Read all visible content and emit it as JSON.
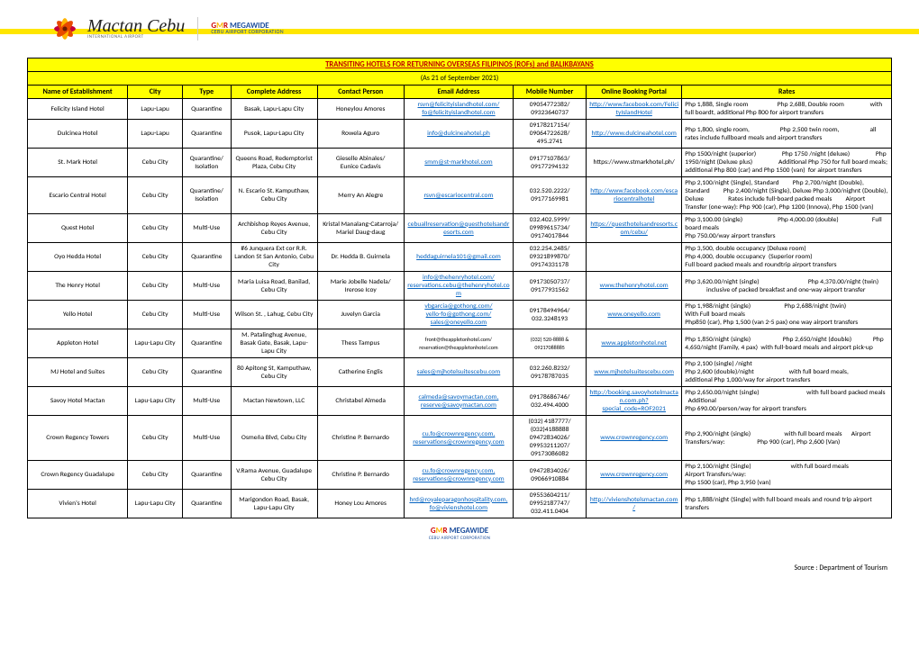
{
  "header": {
    "brand1_script": "Mactan Cebu",
    "brand1_sub": "INTERNATIONAL  AIRPORT",
    "brand2_line1_g": "G",
    "brand2_line1_amp": "M",
    "brand2_line1_r": "R",
    "brand2_line1_mega": " MEGAWIDE",
    "brand2_line2": "CEBU AIRPORT CORPORATION"
  },
  "table": {
    "title": "TRANSITING HOTELS FOR RETURNING OVERSEAS FILIPINOS (ROFs) and BALIKBAYANS",
    "subtitle": "(As 21 of September 2021)",
    "columns": [
      "Name of Establishment",
      "City",
      "Type",
      "Complete Address",
      "Contact Person",
      "Email Address",
      "Mobile Number",
      "Online Booking Portal",
      "Rates"
    ],
    "rows": [
      {
        "name": "Felicity Island Hotel",
        "city": "Lapu-Lapu",
        "type": "Quarantine",
        "addr": "Basak, Lapu-Lapu City",
        "contact": "Honeylou Amores",
        "email_html": "<a class='link' href='#'>rsvn@felicityislandhotel.com/</a><br><a class='link' href='#'>fo@felicityislandhotel.com</a>",
        "mobile": "09054772382/<br>09323640737",
        "portal_html": "<a class='link' href='#'>http://www.facebook.com/FelicityIslandHotel</a>",
        "rates": "Php 1,888, Single room &nbsp;&nbsp;&nbsp;&nbsp;&nbsp;&nbsp;&nbsp;&nbsp;&nbsp;&nbsp;&nbsp;&nbsp;&nbsp;&nbsp;&nbsp;&nbsp;&nbsp; Php 2,688, Double room &nbsp;&nbsp;&nbsp;&nbsp;&nbsp;&nbsp;&nbsp;&nbsp;&nbsp;&nbsp;&nbsp;&nbsp;&nbsp;&nbsp;&nbsp; with full boardt, additional Php 800 for airport transfers"
      },
      {
        "name": "Dulcinea Hotel",
        "city": "Lapu-Lapu",
        "type": "Quarantine",
        "addr": "Pusok, Lapu-Lapu City",
        "contact": "Rowela Aguro",
        "email_html": "<a class='link' href='#'>info@dulcineahotel.ph</a>",
        "mobile": "09178217154/<br>09064722628/ 495.2741",
        "portal_html": "<a class='link' href='#'>http://www.dulcineahotel.com</a>",
        "rates": "Php 1,800, single room, &nbsp;&nbsp;&nbsp;&nbsp;&nbsp;&nbsp;&nbsp;&nbsp;&nbsp;&nbsp;&nbsp;&nbsp;&nbsp;&nbsp;&nbsp;&nbsp;&nbsp;&nbsp; Php 2,500 twin room, &nbsp;&nbsp;&nbsp;&nbsp;&nbsp;&nbsp;&nbsp;&nbsp;&nbsp;&nbsp;&nbsp;&nbsp;&nbsp;&nbsp;&nbsp;&nbsp;&nbsp;&nbsp; all rates include fullboard meals and airport transfers"
      },
      {
        "name": "St. Mark Hotel",
        "city": "Cebu City",
        "type": "Quarantine/ Isolation",
        "addr": "Queens Road, Redemptorist Plaza, Cebu City",
        "contact": "Gieselle Abinales/<br>Eunice Cadavis",
        "email_html": "<a class='link' href='#'>smm@st-markhotel.com</a>",
        "mobile": "09177107863/<br>09177294132",
        "portal_html": "https://www.stmarkhotel.ph/",
        "rates": "Php 1500/night (superior) &nbsp;&nbsp;&nbsp;&nbsp;&nbsp;&nbsp;&nbsp;&nbsp;&nbsp;&nbsp;&nbsp;&nbsp;&nbsp;&nbsp;&nbsp; Php 1750 /night (deluxe) &nbsp;&nbsp;&nbsp;&nbsp;&nbsp;&nbsp;&nbsp;&nbsp;&nbsp;&nbsp;&nbsp;&nbsp;&nbsp;&nbsp;&nbsp; Php 1950/night (Deluxe plus) &nbsp;&nbsp;&nbsp;&nbsp;&nbsp;&nbsp;&nbsp;&nbsp;&nbsp;&nbsp;&nbsp;&nbsp;&nbsp;&nbsp;&nbsp; Additional Php 750 for full board meals; additional Php 800 (car) and Php 1500 (van) &nbsp;for airport transfers"
      },
      {
        "name": "Escario Central Hotel",
        "city": "Cebu City",
        "type": "Quarantine/ Isolation",
        "addr": "N. Escario St. Kamputhaw, Cebu City",
        "contact": "Merry An Alegre",
        "email_html": "<a class='link' href='#'>rsvn@escariocentral.com</a>",
        "mobile": "032.520.2222/<br>09177169981",
        "portal_html": "<a class='link' href='#'>http://www.facebook.com/escariocentralhotel</a>",
        "rates": "Php 2,100/night (Single), Standard &nbsp;&nbsp;&nbsp;&nbsp;&nbsp;&nbsp;&nbsp; Php 2,700/night (Double), Standard &nbsp;&nbsp;&nbsp;&nbsp;&nbsp;&nbsp;&nbsp; Php 2,400/night (Single), Deluxe Php 3,000/nighnt (Double), Deluxe &nbsp;&nbsp;&nbsp;&nbsp;&nbsp;&nbsp;&nbsp;&nbsp;&nbsp;&nbsp;&nbsp;&nbsp;&nbsp;&nbsp; Rates include full-board packed meals &nbsp;&nbsp;&nbsp;&nbsp;&nbsp;&nbsp;&nbsp; Airport Transfer (one-way): Php 900 (car), Php 1200 (Innova), Php 1500 (van)"
      },
      {
        "name": "Quest Hotel",
        "city": "Cebu City",
        "type": "Multi-Use",
        "addr": "Archbishop Reyes Avenue, Cebu City",
        "contact": "Kristal Manalang-Catarroja/<br>Mariel Daug-daug",
        "email_html": "<a class='link' href='#'>cebuallreservation@questhotelsandresorts.com</a>",
        "mobile": "032.402.5999/<br>09989615734/<br>09174017844",
        "portal_html": "<a class='link' href='#'>https://questhotelsandresorts.com/cebu/</a>",
        "rates": "Php 3,100.00 (single) &nbsp;&nbsp;&nbsp;&nbsp;&nbsp;&nbsp;&nbsp;&nbsp;&nbsp;&nbsp;&nbsp;&nbsp;&nbsp;&nbsp;&nbsp;&nbsp;&nbsp;&nbsp;&nbsp;&nbsp;&nbsp; Php 4,000.00 (double) &nbsp;&nbsp;&nbsp;&nbsp;&nbsp;&nbsp;&nbsp;&nbsp;&nbsp;&nbsp;&nbsp;&nbsp;&nbsp;&nbsp;&nbsp;&nbsp;&nbsp;&nbsp;&nbsp;&nbsp; Full board meals<br>Php 750.00/way airport transfers"
      },
      {
        "name": "Oyo Hedda Hotel",
        "city": "Cebu City",
        "type": "Quarantine",
        "addr": "#6 Junquera Ext cor R.R. Landon St San Antonio, Cebu City",
        "contact": "Dr. Hedda B. Guirnela",
        "email_html": "<a class='link' href='#'>heddaguirnela101@gmail.com</a>",
        "mobile": "032.254.2485/<br>09321899870/<br>09174331178",
        "portal_html": "",
        "rates": "Php 3,500, double occupancy (Deluxe room)<br>Php 4,000, double occupancy &nbsp;(Superior room)<br>Full board packed meals and roundtrip airport transfers"
      },
      {
        "name": "The Henry Hotel",
        "city": "Cebu City",
        "type": "Multi-Use",
        "addr": "Maria Luisa Road, Banilad, Cebu City",
        "contact": "Marie Jobelle Nadela/ Irerose Icoy",
        "email_html": "<a class='link' href='#'>info@thehenryhotel.com/</a><br><a class='link' href='#'>reservations.cebu@thehenryhotel.com</a>",
        "mobile": "09173050737/<br>09177931562",
        "portal_html": "<a class='link' href='#'>www.thehenryhotel.com</a>",
        "rates": "Php 3,620.00/night (single) &nbsp;&nbsp;&nbsp;&nbsp;&nbsp;&nbsp;&nbsp;&nbsp;&nbsp;&nbsp;&nbsp;&nbsp;&nbsp;&nbsp;&nbsp;&nbsp;&nbsp;&nbsp;&nbsp;&nbsp;&nbsp;&nbsp;&nbsp;&nbsp;&nbsp;&nbsp;&nbsp;&nbsp;&nbsp;&nbsp; Php 4,370.00/night (twin) &nbsp;&nbsp;&nbsp;&nbsp;&nbsp;&nbsp;&nbsp;&nbsp;&nbsp;&nbsp;&nbsp;&nbsp;&nbsp; inclusive of packed breakfast and one-way airport transfer"
      },
      {
        "name": "Yello Hotel",
        "city": "Cebu City",
        "type": "Multi-Use",
        "addr": "Wilson St. , Lahug, Cebu City",
        "contact": "Juvelyn Garcia",
        "email_html": "<a class='link' href='#'>vbgarcia@gothong.com/</a><br><a class='link' href='#'>yello-fo@gothong.com/</a><br><a class='link' href='#'>sales@oneyello.com</a>",
        "mobile": "09178494964/<br>032.3248193",
        "portal_html": "<a class='link' href='#'>www.oneyello.com</a>",
        "rates": "Php 1,988/night (single) &nbsp;&nbsp;&nbsp;&nbsp;&nbsp;&nbsp;&nbsp;&nbsp;&nbsp;&nbsp;&nbsp;&nbsp;&nbsp;&nbsp;&nbsp;&nbsp;&nbsp;&nbsp;&nbsp;&nbsp; Php 2,688/night (twin) &nbsp;&nbsp;&nbsp;&nbsp;&nbsp;&nbsp;&nbsp;&nbsp;&nbsp;&nbsp;&nbsp;&nbsp;&nbsp;&nbsp;&nbsp;&nbsp;&nbsp;&nbsp;&nbsp;&nbsp;&nbsp; With Full board meals<br>Php850 (car), Php 1,500 (van 2-5 pax) one way airport transfers"
      },
      {
        "name": "Appleton Hotel",
        "city": "Lapu-Lapu City",
        "type": "Quarantine",
        "addr": "M. Patalinghug Avenue, Basak Gate, Basak, Lapu-Lapu City",
        "contact": "Thess Tampus",
        "email_html": "<span class='tiny'>front@theappletonhotel.com/<br>reservation@theappletonhotel.com</span>",
        "mobile": "<span class='tiny'>(032) 520-8888 &amp; 09217088885</span>",
        "portal_html": "<a class='link' href='#'>www.appletonhotel.net</a>",
        "rates": "Php 1,850/night (single) &nbsp;&nbsp;&nbsp;&nbsp;&nbsp;&nbsp;&nbsp;&nbsp;&nbsp;&nbsp;&nbsp;&nbsp;&nbsp;&nbsp;&nbsp;&nbsp;&nbsp;&nbsp;&nbsp; Php 2,650/night (double) &nbsp;&nbsp;&nbsp;&nbsp;&nbsp;&nbsp;&nbsp;&nbsp;&nbsp;&nbsp;&nbsp;&nbsp; Php 4,650/night (Family, 4 pax) &nbsp;with full-board meals and airport pick-up"
      },
      {
        "name": "MJ Hotel and Suites",
        "city": "Cebu City",
        "type": "Quarantine",
        "addr": "80 Apitong St, Kamputhaw, Cebu City",
        "contact": "Catherine Englis",
        "email_html": "<a class='link' href='#'>sales@mjhotelsuitescebu.com</a>",
        "mobile": "032.260.8232/<br>09178787035",
        "portal_html": "<a class='link' href='#'>www.mjhotelsuitescebu.com</a>",
        "rates": "Php 2,100 (single) /night<br>Php 2,600 (double)/night &nbsp;&nbsp;&nbsp;&nbsp;&nbsp;&nbsp;&nbsp;&nbsp;&nbsp;&nbsp;&nbsp;&nbsp;&nbsp;&nbsp;&nbsp;&nbsp;&nbsp;&nbsp;&nbsp;&nbsp;&nbsp; with full board meals, &nbsp;&nbsp;&nbsp;&nbsp;&nbsp;&nbsp;&nbsp;&nbsp;&nbsp;&nbsp;&nbsp;&nbsp;&nbsp;&nbsp;&nbsp;&nbsp;&nbsp;&nbsp; additional Php 1,000/way for airport transfers"
      },
      {
        "name": "Savoy Hotel Mactan",
        "city": "Lapu-Lapu City",
        "type": "Multi-Use",
        "addr": "Mactan Newtown, LLC",
        "contact": "Christabel Almeda",
        "email_html": "<a class='link' href='#'>calmeda@savoymactan.com,<br>reserve@savoymactan.com</a>",
        "mobile": "09178686746/<br>032.494.4000",
        "portal_html": "<a class='link' href='#'>http://booking.savoyhotelmactan.com.ph?special_code=ROF2021</a>",
        "rates": "Php 2,650.00/night (single) &nbsp;&nbsp;&nbsp;&nbsp;&nbsp;&nbsp;&nbsp;&nbsp;&nbsp;&nbsp;&nbsp;&nbsp;&nbsp;&nbsp;&nbsp;&nbsp;&nbsp;&nbsp;&nbsp;&nbsp;&nbsp;&nbsp;&nbsp;&nbsp;&nbsp;&nbsp;&nbsp;&nbsp;&nbsp; with full board packed meals &nbsp;&nbsp;Additional<br>Php 690.00/person/way for airport transfers"
      },
      {
        "name": "Crown Regency Towers",
        "city": "Cebu City",
        "type": "Multi-Use",
        "addr": "Osmeña Blvd, Cebu City",
        "contact": "Christine P. Bernardo",
        "email_html": "<a class='link' href='#'>cu.fo@crownregency.com,<br>reservations@crownregency.com</a>",
        "mobile": "(032) 4187777/<br>(032)4188888<br>09472834026/<br>09953211207/<br>09173086082",
        "portal_html": "<a class='link' href='#'>www.crownregency.com</a>",
        "rates": "Php 2,900/night (single) &nbsp;&nbsp;&nbsp;&nbsp;&nbsp;&nbsp;&nbsp;&nbsp;&nbsp;&nbsp;&nbsp;&nbsp;&nbsp;&nbsp;&nbsp;&nbsp;&nbsp;&nbsp;&nbsp;&nbsp; with full board meals &nbsp;&nbsp;&nbsp;&nbsp;&nbsp;Airport Transfers/way: &nbsp;&nbsp;&nbsp;&nbsp;&nbsp;&nbsp;&nbsp;&nbsp;&nbsp;&nbsp;&nbsp;&nbsp;&nbsp;&nbsp;&nbsp;&nbsp;&nbsp;&nbsp;&nbsp; Php 900 (car), Php 2,600 (Van)"
      },
      {
        "name": "Crown Regency Guadalupe",
        "city": "Cebu City",
        "type": "Quarantine",
        "addr": "V.Rama Avenue, Guadalupe Cebu City",
        "contact": "Christine P. Bernardo",
        "email_html": "<a class='link' href='#'>cu.fo@crownregency.com,<br>reservations@crownregency.com</a>",
        "mobile": "09472834026/<br>09066910884",
        "portal_html": "<a class='link' href='#'>www.crownregency.com</a>",
        "rates": "Php 2,100/night (Single) &nbsp;&nbsp;&nbsp;&nbsp;&nbsp;&nbsp;&nbsp;&nbsp;&nbsp;&nbsp;&nbsp;&nbsp;&nbsp;&nbsp;&nbsp;&nbsp;&nbsp;&nbsp;&nbsp;&nbsp;&nbsp;&nbsp;&nbsp;&nbsp; with full board meals &nbsp;&nbsp;&nbsp;&nbsp;&nbsp;&nbsp;&nbsp;&nbsp;&nbsp;&nbsp;&nbsp;&nbsp;&nbsp;&nbsp;&nbsp;&nbsp;&nbsp;&nbsp; Airport Transfers/way:<br>Php 1500 (car), Php 3,950 (van)"
      },
      {
        "name": "Vivien's Hotel",
        "city": "Lapu-Lapu City",
        "type": "Quarantine",
        "addr": "Marigondon Road, Basak, Lapu-Lapu City",
        "contact": "Honey Lou Amores",
        "email_html": "<a class='link' href='#'>hrd@royaleparagonhospitality.com, fo@vivienshotel.com</a>",
        "mobile": "09553604211/<br>09952187747/<br>032.411.0404",
        "portal_html": "<a class='link' href='#'>http://vivienshotelsmactan.com/</a>",
        "rates": "Php 1,888/night (Single) with full board meals and round trip airport transfers"
      }
    ]
  },
  "footer": {
    "logo_g": "G",
    "logo_amp": "M",
    "logo_r": "R",
    "logo_mega": " MEGAWIDE",
    "logo_sub": "CEBU AIRPORT CORPORATION",
    "source": "Source : Department of Tourism"
  }
}
